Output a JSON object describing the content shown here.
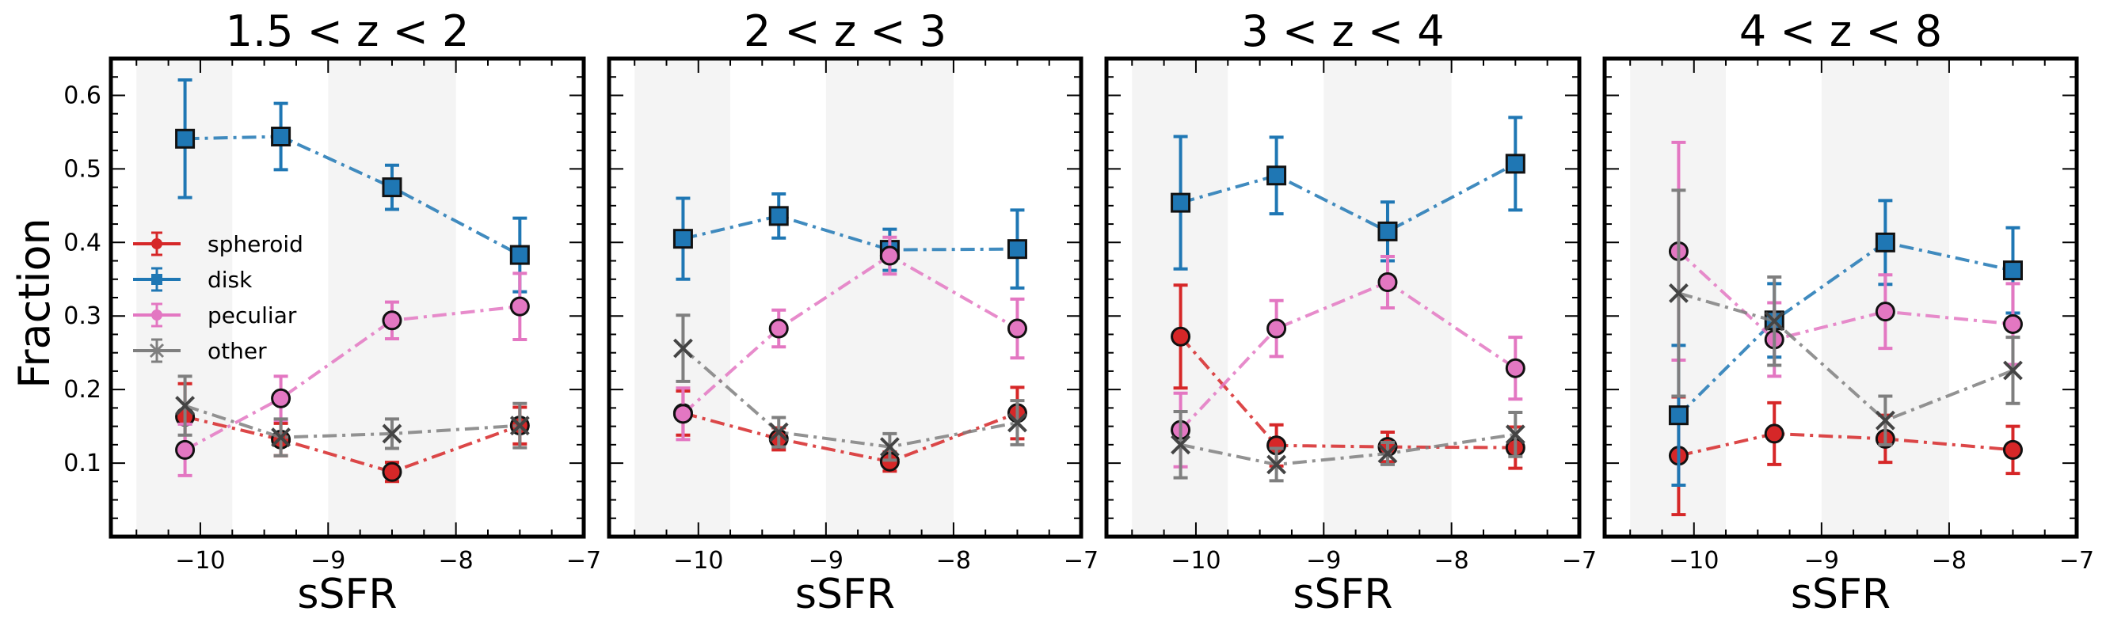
{
  "chart_data": [
    {
      "type": "line",
      "title": "1.5 < z < 2",
      "xlabel": "sSFR",
      "ylabel": "Fraction",
      "xlim": [
        -10.7,
        -7
      ],
      "ylim": [
        0,
        0.65
      ],
      "xticks": [
        -10,
        -9,
        -8,
        -7
      ],
      "xtick_labels": [
        "−10",
        "−9",
        "−8",
        "−7"
      ],
      "yticks": [
        0.1,
        0.2,
        0.3,
        0.4,
        0.5,
        0.6
      ],
      "ytick_labels": [
        "0.1",
        "0.2",
        "0.3",
        "0.4",
        "0.5",
        "0.6"
      ],
      "shaded_bands": [
        [
          -10.5,
          -9.75
        ],
        [
          -9.0,
          -8.0
        ]
      ],
      "legend": "center-left",
      "x": [
        -10.12,
        -9.37,
        -8.5,
        -7.5
      ],
      "series": [
        {
          "name": "spheroid",
          "color": "#d62728",
          "marker": "circle",
          "values": [
            0.163,
            0.132,
            0.088,
            0.151
          ],
          "errors": [
            0.045,
            0.022,
            0.013,
            0.025
          ]
        },
        {
          "name": "disk",
          "color": "#1f77b4",
          "marker": "square",
          "values": [
            0.541,
            0.544,
            0.475,
            0.383
          ],
          "errors": [
            0.08,
            0.045,
            0.03,
            0.05
          ]
        },
        {
          "name": "peculiar",
          "color": "#e377c2",
          "marker": "circle",
          "values": [
            0.118,
            0.188,
            0.294,
            0.313
          ],
          "errors": [
            0.035,
            0.03,
            0.025,
            0.045
          ]
        },
        {
          "name": "other",
          "color": "#7f7f7f",
          "marker": "x",
          "values": [
            0.178,
            0.135,
            0.14,
            0.151
          ],
          "errors": [
            0.04,
            0.025,
            0.02,
            0.03
          ]
        }
      ]
    },
    {
      "type": "line",
      "title": "2 < z < 3",
      "xlabel": "sSFR",
      "xlim": [
        -10.7,
        -7
      ],
      "ylim": [
        0,
        0.65
      ],
      "xticks": [
        -10,
        -9,
        -8,
        -7
      ],
      "xtick_labels": [
        "−10",
        "−9",
        "−8",
        "−7"
      ],
      "shaded_bands": [
        [
          -10.5,
          -9.75
        ],
        [
          -9.0,
          -8.0
        ]
      ],
      "x": [
        -10.12,
        -9.37,
        -8.5,
        -7.5
      ],
      "series": [
        {
          "name": "spheroid",
          "color": "#d62728",
          "marker": "circle",
          "values": [
            0.168,
            0.133,
            0.102,
            0.168
          ],
          "errors": [
            0.03,
            0.015,
            0.013,
            0.035
          ]
        },
        {
          "name": "disk",
          "color": "#1f77b4",
          "marker": "square",
          "values": [
            0.405,
            0.436,
            0.39,
            0.391
          ],
          "errors": [
            0.055,
            0.03,
            0.028,
            0.053
          ]
        },
        {
          "name": "peculiar",
          "color": "#e377c2",
          "marker": "circle",
          "values": [
            0.167,
            0.283,
            0.382,
            0.283
          ],
          "errors": [
            0.035,
            0.025,
            0.025,
            0.04
          ]
        },
        {
          "name": "other",
          "color": "#7f7f7f",
          "marker": "x",
          "values": [
            0.256,
            0.142,
            0.122,
            0.155
          ],
          "errors": [
            0.045,
            0.02,
            0.018,
            0.03
          ]
        }
      ]
    },
    {
      "type": "line",
      "title": "3 < z < 4",
      "xlabel": "sSFR",
      "xlim": [
        -10.7,
        -7
      ],
      "ylim": [
        0,
        0.65
      ],
      "xticks": [
        -10,
        -9,
        -8,
        -7
      ],
      "xtick_labels": [
        "−10",
        "−9",
        "−8",
        "−7"
      ],
      "shaded_bands": [
        [
          -10.5,
          -9.75
        ],
        [
          -9.0,
          -8.0
        ]
      ],
      "x": [
        -10.12,
        -9.37,
        -8.5,
        -7.5
      ],
      "series": [
        {
          "name": "spheroid",
          "color": "#d62728",
          "marker": "circle",
          "values": [
            0.272,
            0.124,
            0.122,
            0.121
          ],
          "errors": [
            0.07,
            0.028,
            0.02,
            0.028
          ]
        },
        {
          "name": "disk",
          "color": "#1f77b4",
          "marker": "square",
          "values": [
            0.454,
            0.491,
            0.415,
            0.507
          ],
          "errors": [
            0.09,
            0.052,
            0.04,
            0.063
          ]
        },
        {
          "name": "peculiar",
          "color": "#e377c2",
          "marker": "circle",
          "values": [
            0.145,
            0.283,
            0.346,
            0.229
          ],
          "errors": [
            0.05,
            0.038,
            0.035,
            0.042
          ]
        },
        {
          "name": "other",
          "color": "#7f7f7f",
          "marker": "x",
          "values": [
            0.125,
            0.098,
            0.113,
            0.139
          ],
          "errors": [
            0.045,
            0.022,
            0.015,
            0.03
          ]
        }
      ]
    },
    {
      "type": "line",
      "title": "4 < z < 8",
      "xlabel": "sSFR",
      "xlim": [
        -10.7,
        -7
      ],
      "ylim": [
        0,
        0.65
      ],
      "xticks": [
        -10,
        -9,
        -8,
        -7
      ],
      "xtick_labels": [
        "−10",
        "−9",
        "−8",
        "−7"
      ],
      "shaded_bands": [
        [
          -10.5,
          -9.75
        ],
        [
          -9.0,
          -8.0
        ]
      ],
      "x": [
        -10.12,
        -9.37,
        -8.5,
        -7.5
      ],
      "series": [
        {
          "name": "spheroid",
          "color": "#d62728",
          "marker": "circle",
          "values": [
            0.11,
            0.14,
            0.133,
            0.118
          ],
          "errors": [
            0.08,
            0.042,
            0.032,
            0.032
          ]
        },
        {
          "name": "disk",
          "color": "#1f77b4",
          "marker": "square",
          "values": [
            0.165,
            0.294,
            0.4,
            0.362
          ],
          "errors": [
            0.095,
            0.05,
            0.057,
            0.058
          ]
        },
        {
          "name": "peculiar",
          "color": "#e377c2",
          "marker": "circle",
          "values": [
            0.388,
            0.268,
            0.306,
            0.289
          ],
          "errors": [
            0.148,
            0.05,
            0.05,
            0.055
          ]
        },
        {
          "name": "other",
          "color": "#7f7f7f",
          "marker": "x",
          "values": [
            0.331,
            0.293,
            0.158,
            0.226
          ],
          "errors": [
            0.14,
            0.06,
            0.033,
            0.045
          ]
        }
      ]
    }
  ]
}
